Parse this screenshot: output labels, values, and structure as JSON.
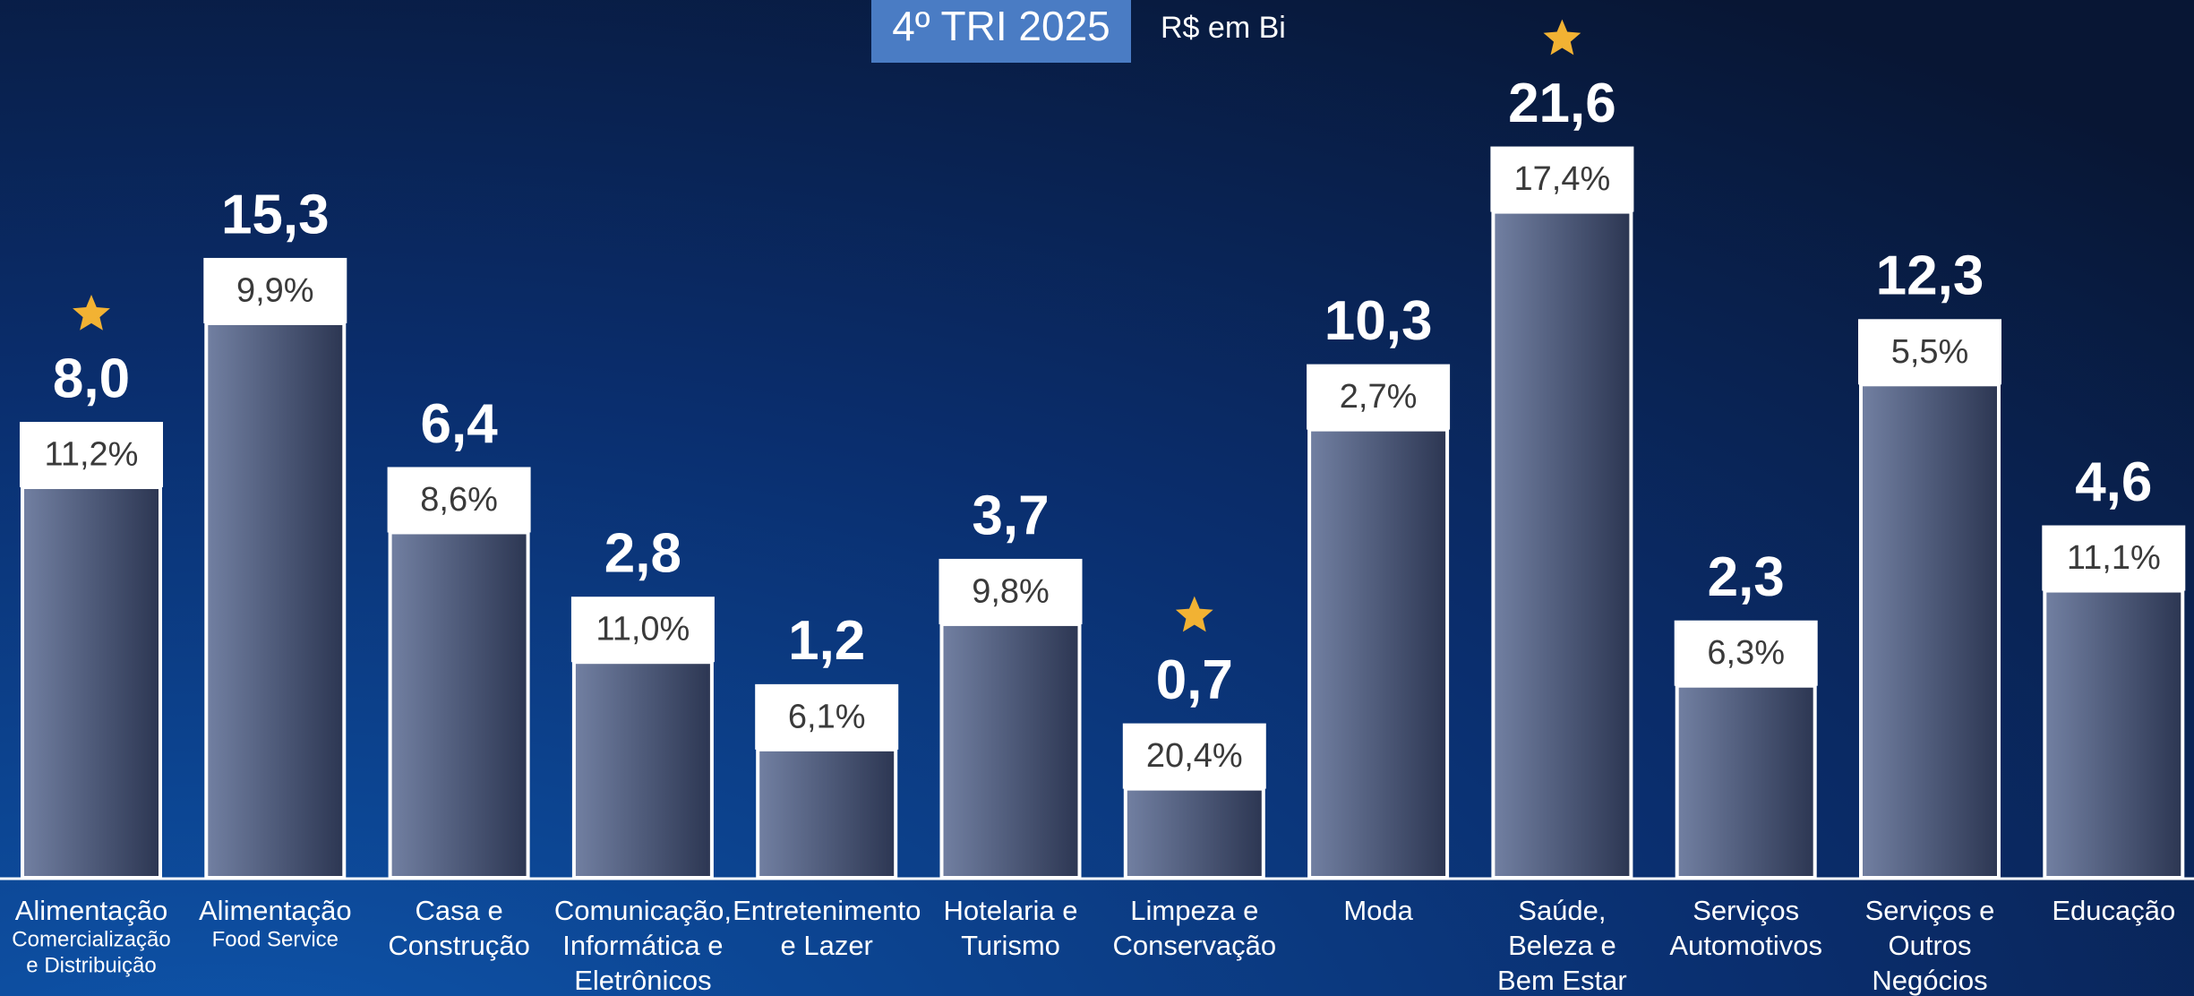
{
  "chart_data": {
    "type": "bar",
    "title": "4º TRI 2025",
    "subtitle": "R$ em Bi",
    "yscale": "sqrt",
    "categories": [
      [
        "Alimentação"
      ],
      [
        "Alimentação"
      ],
      [
        "Casa e",
        "Construção"
      ],
      [
        "Comunicação,",
        "Informática e",
        "Eletrônicos"
      ],
      [
        "Entretenimento",
        "e Lazer"
      ],
      [
        "Hotelaria e",
        "Turismo"
      ],
      [
        "Limpeza e",
        "Conservação"
      ],
      [
        "Moda"
      ],
      [
        "Saúde,",
        "Beleza e",
        "Bem Estar"
      ],
      [
        "Serviços",
        "Automotivos"
      ],
      [
        "Serviços e",
        "Outros",
        "Negócios"
      ],
      [
        "Educação"
      ]
    ],
    "category_subtitles": [
      [
        "Comercialização",
        "e Distribuição"
      ],
      [
        "Food Service"
      ],
      null,
      null,
      null,
      null,
      null,
      null,
      null,
      null,
      null,
      null
    ],
    "values": [
      8.0,
      15.3,
      6.4,
      2.8,
      1.2,
      3.7,
      0.7,
      10.3,
      21.6,
      2.3,
      12.3,
      4.6
    ],
    "value_labels": [
      "8,0",
      "15,3",
      "6,4",
      "2,8",
      "1,2",
      "3,7",
      "0,7",
      "10,3",
      "21,6",
      "2,3",
      "12,3",
      "4,6"
    ],
    "growth_labels": [
      "11,2%",
      "9,9%",
      "8,6%",
      "11,0%",
      "6,1%",
      "9,8%",
      "20,4%",
      "2,7%",
      "17,4%",
      "6,3%",
      "5,5%",
      "11,1%"
    ],
    "highlighted": [
      true,
      false,
      false,
      false,
      false,
      false,
      true,
      false,
      true,
      false,
      false,
      false
    ],
    "color": "#5a6684",
    "star_color": "#f2b233"
  }
}
